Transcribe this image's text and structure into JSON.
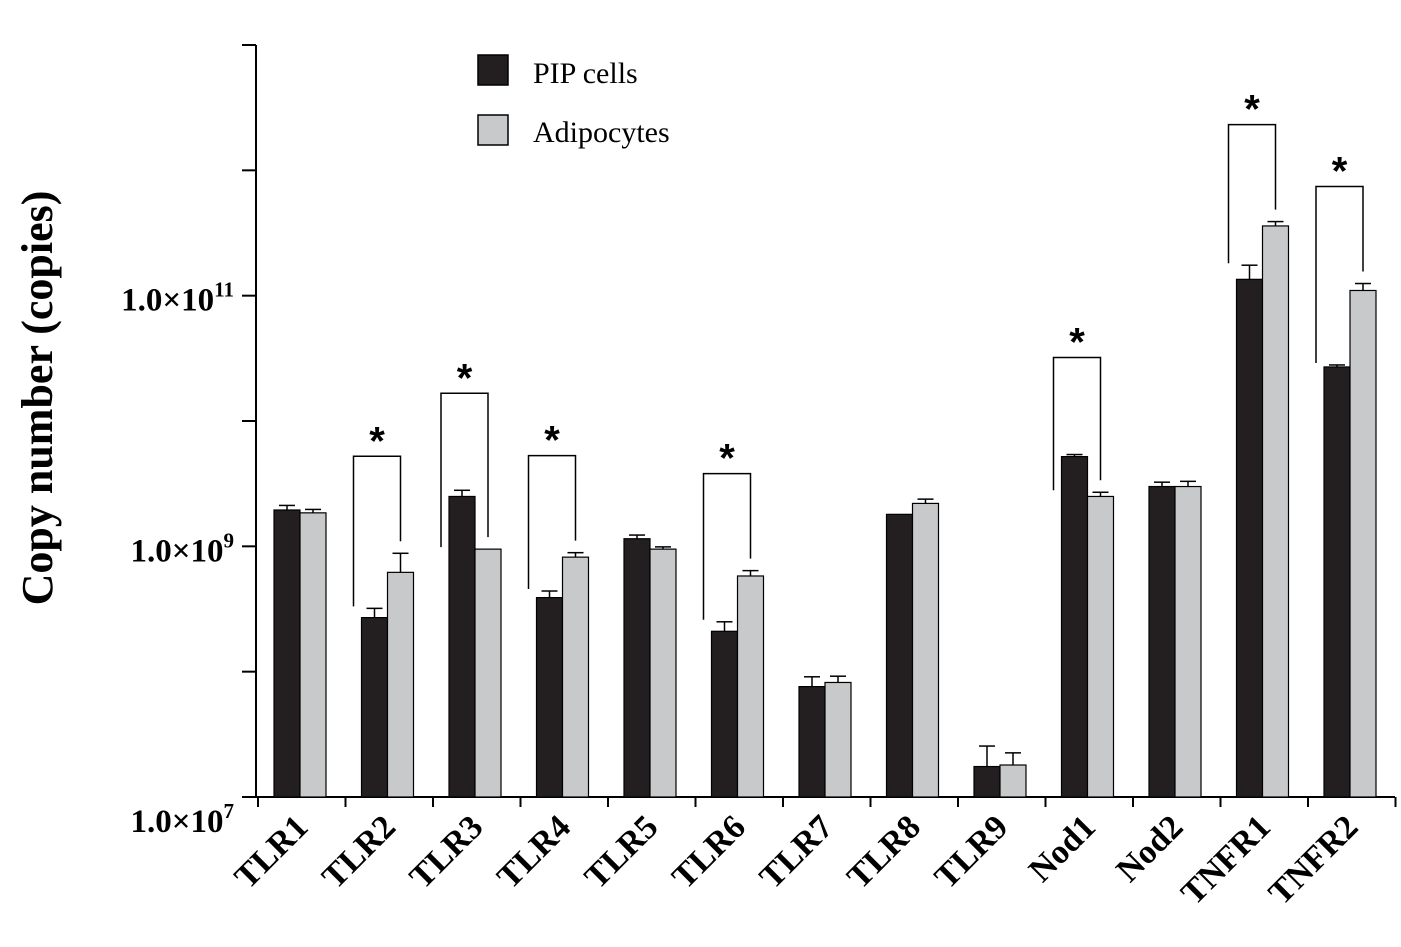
{
  "chart_data": {
    "type": "bar",
    "ylabel": "Copy number (copies)",
    "xlabel": "",
    "yscale": "log",
    "ylim": [
      10000000,
      10000000000000
    ],
    "y_tick_labels": [
      {
        "value": 10000000,
        "mantissa": "1.0×10",
        "exponent": "7"
      },
      {
        "value": 1000000000,
        "mantissa": "1.0×10",
        "exponent": "9"
      },
      {
        "value": 100000000000,
        "mantissa": "1.0×10",
        "exponent": "11"
      }
    ],
    "y_minor_ticks": [
      100000000,
      10000000000,
      1000000000000,
      10000000000000
    ],
    "categories": [
      "TLR1",
      "TLR2",
      "TLR3",
      "TLR4",
      "TLR5",
      "TLR6",
      "TLR7",
      "TLR8",
      "TLR9",
      "Nod1",
      "Nod2",
      "TNFR1",
      "TNFR2"
    ],
    "series": [
      {
        "name": "PIP cells",
        "color": "#231f20",
        "values": [
          1950000000,
          270000000,
          2500000000,
          390000000,
          1150000000,
          210000000,
          76000000,
          1800000000,
          17500000,
          5200000000,
          3000000000,
          135000000000,
          27000000000
        ],
        "errors": [
          170000000,
          50000000,
          300000000,
          50000000,
          80000000,
          40000000,
          15000000,
          0,
          8000000,
          200000000,
          250000000,
          40000000000,
          1000000000
        ]
      },
      {
        "name": "Adipocytes",
        "color": "#c8c9cb",
        "values": [
          1850000000,
          620000000,
          950000000,
          820000000,
          950000000,
          580000000,
          82000000,
          2200000000,
          18000000,
          2500000000,
          3000000000,
          360000000000,
          110000000000
        ],
        "errors": [
          120000000,
          260000000,
          0,
          70000000,
          40000000,
          60000000,
          10000000,
          180000000,
          4500000,
          200000000,
          300000000,
          30000000000,
          15000000000
        ]
      }
    ],
    "significance": [
      "",
      "*",
      "*",
      "*",
      "",
      "*",
      "",
      "",
      "",
      "*",
      "",
      "*",
      "*"
    ],
    "legend_position": "top-left",
    "grid": false
  }
}
